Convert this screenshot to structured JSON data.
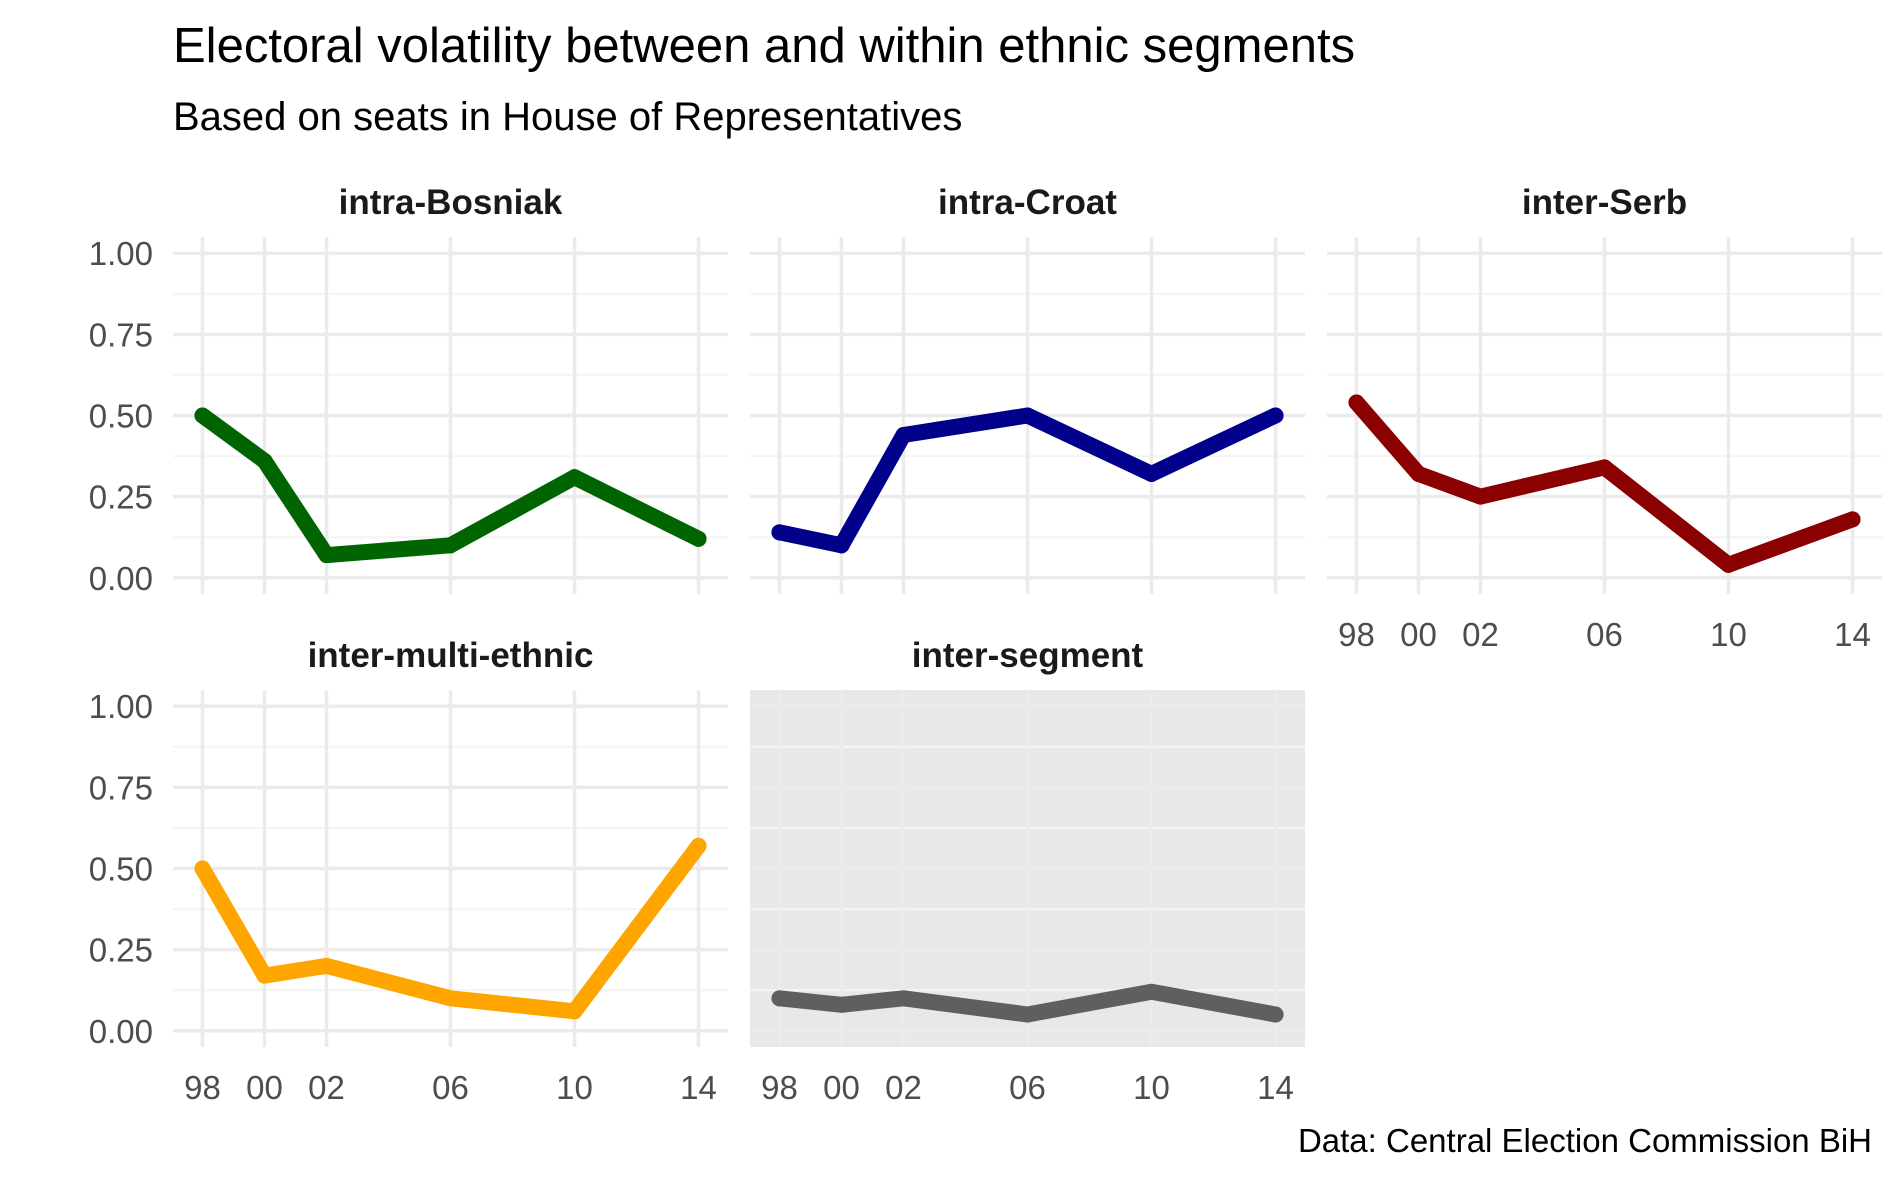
{
  "title": "Electoral volatility between and within ethnic segments",
  "subtitle": "Based on seats in House of Representatives",
  "caption": "Data: Central Election Commission BiH",
  "chart_data": {
    "type": "line",
    "x": [
      1998,
      2000,
      2002,
      2006,
      2010,
      2014
    ],
    "x_tick_labels": [
      "98",
      "00",
      "02",
      "06",
      "10",
      "14"
    ],
    "y_ticks": [
      0,
      0.25,
      0.5,
      0.75,
      1.0
    ],
    "y_tick_labels": [
      "0.00",
      "0.25",
      "0.50",
      "0.75",
      "1.00"
    ],
    "ylim": [
      0,
      1
    ],
    "grid": true,
    "panels": [
      {
        "name": "intra-Bosniak",
        "color": "#006400",
        "highlight": false,
        "values": [
          0.5,
          0.36,
          0.07,
          0.1,
          0.31,
          0.12
        ]
      },
      {
        "name": "intra-Croat",
        "color": "#00008B",
        "highlight": false,
        "values": [
          0.14,
          0.1,
          0.44,
          0.5,
          0.32,
          0.5
        ]
      },
      {
        "name": "inter-Serb",
        "color": "#8B0000",
        "highlight": false,
        "values": [
          0.54,
          0.32,
          0.25,
          0.34,
          0.04,
          0.18
        ]
      },
      {
        "name": "inter-multi-ethnic",
        "color": "#FFA500",
        "highlight": false,
        "values": [
          0.5,
          0.17,
          0.2,
          0.1,
          0.06,
          0.57
        ]
      },
      {
        "name": "inter-segment",
        "color": "#5F5F5F",
        "highlight": true,
        "values": [
          0.1,
          0.08,
          0.1,
          0.05,
          0.12,
          0.05
        ]
      }
    ]
  }
}
